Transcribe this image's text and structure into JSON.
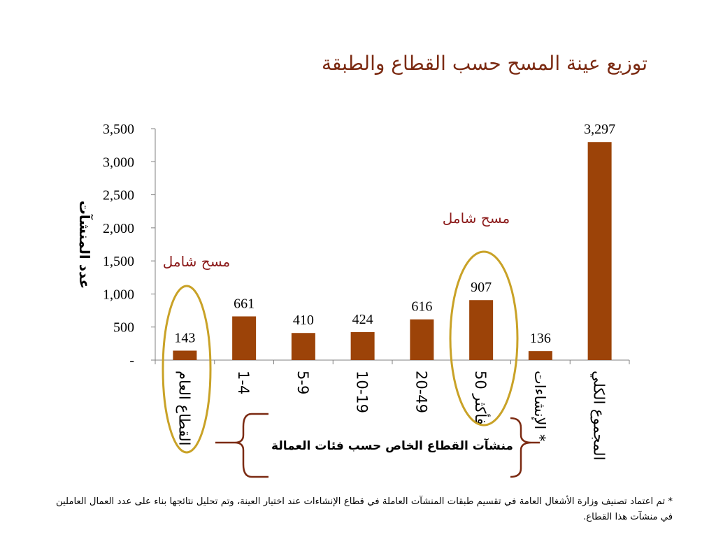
{
  "title": "توزيع عينة المسح حسب القطاع والطبقة",
  "chart_data": {
    "type": "bar",
    "categories": [
      "القطاع العام",
      "1-4",
      "5-9",
      "10-19",
      "20-49",
      "50 فأكثر",
      "الإنشاءات *",
      "المجموع الكلي"
    ],
    "values": [
      143,
      661,
      410,
      424,
      616,
      907,
      136,
      3297
    ],
    "data_labels": [
      "143",
      "661",
      "410",
      "424",
      "616",
      "907",
      "136",
      "3,297"
    ],
    "ylabel": "عدد المنشآت",
    "ylim": [
      0,
      3500
    ],
    "yticks": [
      0,
      500,
      1000,
      1500,
      2000,
      2500,
      3000,
      3500
    ],
    "ytick_labels": [
      "-",
      "500",
      "1,000",
      "1,500",
      "2,000",
      "2,500",
      "3,000",
      "3,500"
    ],
    "grid": false,
    "bar_color": "#9c4308",
    "annotations": [
      "مسح شامل",
      "مسح شامل"
    ],
    "annotation_color": "#8b1a1a",
    "highlight_color": "#c9a227",
    "brace_color": "#7b2a12",
    "group_label": "منشآت القطاع الخاص حسب فئات العمالة"
  },
  "footnote": "* تم اعتماد تصنيف وزارة الأشغال العامة في تقسيم طبقات المنشآت العاملة في قطاع الإنشاءات عند اختيار العينة، وتم تحليل نتائجها بناء على عدد العمال العاملين في منشآت هذا القطاع."
}
